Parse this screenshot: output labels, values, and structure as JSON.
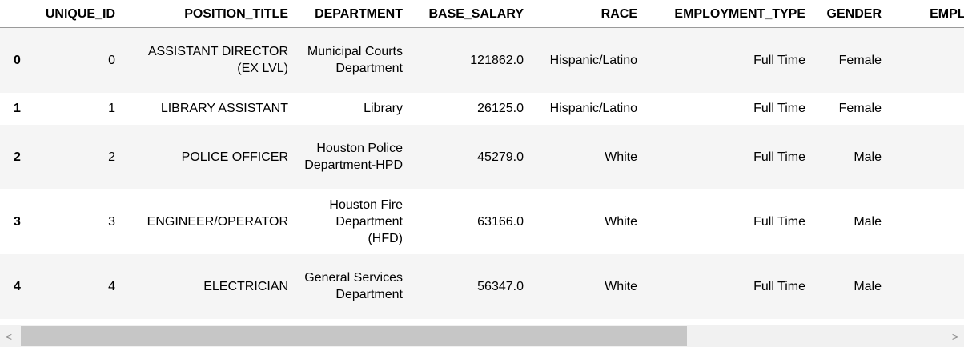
{
  "table": {
    "columns": [
      "",
      "UNIQUE_ID",
      "POSITION_TITLE",
      "DEPARTMENT",
      "BASE_SALARY",
      "RACE",
      "EMPLOYMENT_TYPE",
      "GENDER",
      "EMPLOYM"
    ],
    "rows": [
      {
        "index": "0",
        "unique_id": "0",
        "position_title": "ASSISTANT DIRECTOR (EX LVL)",
        "department": "Municipal Courts Department",
        "base_salary": "121862.0",
        "race": "Hispanic/Latino",
        "employment_type": "Full Time",
        "gender": "Female",
        "employm": ""
      },
      {
        "index": "1",
        "unique_id": "1",
        "position_title": "LIBRARY ASSISTANT",
        "department": "Library",
        "base_salary": "26125.0",
        "race": "Hispanic/Latino",
        "employment_type": "Full Time",
        "gender": "Female",
        "employm": ""
      },
      {
        "index": "2",
        "unique_id": "2",
        "position_title": "POLICE OFFICER",
        "department": "Houston Police Department-HPD",
        "base_salary": "45279.0",
        "race": "White",
        "employment_type": "Full Time",
        "gender": "Male",
        "employm": ""
      },
      {
        "index": "3",
        "unique_id": "3",
        "position_title": "ENGINEER/OPERATOR",
        "department": "Houston Fire Department (HFD)",
        "base_salary": "63166.0",
        "race": "White",
        "employment_type": "Full Time",
        "gender": "Male",
        "employm": ""
      },
      {
        "index": "4",
        "unique_id": "4",
        "position_title": "ELECTRICIAN",
        "department": "General Services Department",
        "base_salary": "56347.0",
        "race": "White",
        "employment_type": "Full Time",
        "gender": "Male",
        "employm": ""
      }
    ]
  },
  "scrollbar": {
    "left_arrow_icon": "chevron-left-icon",
    "right_arrow_icon": "chevron-right-icon",
    "left_glyph": "<",
    "right_glyph": ">"
  }
}
